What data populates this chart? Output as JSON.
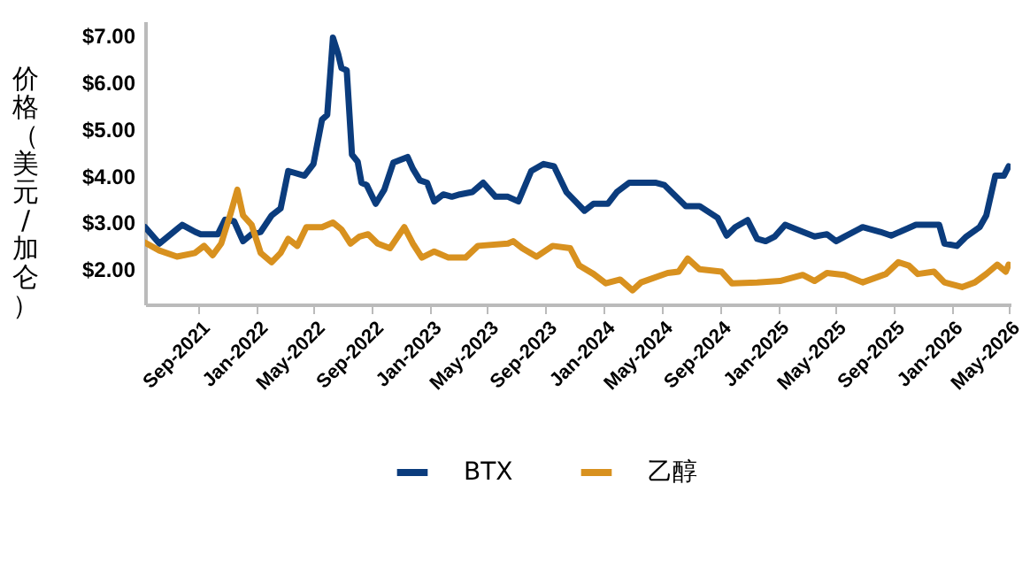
{
  "chart_data": {
    "type": "line",
    "ylabel": "价格（美元/加仑）",
    "series": [
      {
        "name": "BTX",
        "color": "#0b3c7d",
        "x": [
          "2021-05-11",
          "2021-06-10",
          "2021-07-28",
          "2021-08-24",
          "2021-09-05",
          "2021-10-11",
          "2021-10-26",
          "2021-11-14",
          "2021-12-03",
          "2021-12-21",
          "2022-01-09",
          "2022-02-01",
          "2022-02-20",
          "2022-03-08",
          "2022-04-11",
          "2022-04-30",
          "2022-05-18",
          "2022-05-29",
          "2022-06-10",
          "2022-06-21",
          "2022-06-28",
          "2022-07-09",
          "2022-07-20",
          "2022-08-01",
          "2022-08-09",
          "2022-08-20",
          "2022-09-08",
          "2022-09-26",
          "2022-10-15",
          "2022-11-14",
          "2022-11-25",
          "2022-12-10",
          "2022-12-25",
          "2023-01-09",
          "2023-01-28",
          "2023-02-15",
          "2023-03-04",
          "2023-03-30",
          "2023-04-22",
          "2023-05-18",
          "2023-06-13",
          "2023-07-05",
          "2023-08-01",
          "2023-08-27",
          "2023-09-18",
          "2023-10-14",
          "2023-11-02",
          "2023-11-21",
          "2023-12-10",
          "2024-01-09",
          "2024-01-28",
          "2024-02-23",
          "2024-04-18",
          "2024-05-07",
          "2024-06-21",
          "2024-07-20",
          "2024-08-27",
          "2024-09-15",
          "2024-10-03",
          "2024-10-29",
          "2024-11-18",
          "2024-12-06",
          "2024-12-25",
          "2025-01-16",
          "2025-02-22",
          "2025-03-19",
          "2025-04-14",
          "2025-05-03",
          "2025-05-21",
          "2025-06-28",
          "2025-08-04",
          "2025-08-27",
          "2025-10-18",
          "2025-12-06",
          "2025-12-17",
          "2026-01-12",
          "2026-02-01",
          "2026-03-01",
          "2026-03-15",
          "2026-04-03",
          "2026-04-21",
          "2026-05-01"
        ],
        "values": [
          2.9,
          2.55,
          2.95,
          2.8,
          2.75,
          2.75,
          3.06,
          3.03,
          2.6,
          2.75,
          2.8,
          3.15,
          3.3,
          4.1,
          4.0,
          4.25,
          5.2,
          5.3,
          6.95,
          6.6,
          6.3,
          6.25,
          4.45,
          4.3,
          3.85,
          3.8,
          3.4,
          3.7,
          4.28,
          4.4,
          4.15,
          3.9,
          3.85,
          3.45,
          3.6,
          3.55,
          3.6,
          3.65,
          3.85,
          3.55,
          3.55,
          3.45,
          4.1,
          4.25,
          4.2,
          3.65,
          3.45,
          3.25,
          3.4,
          3.4,
          3.65,
          3.85,
          3.85,
          3.8,
          3.35,
          3.35,
          3.1,
          2.72,
          2.9,
          3.05,
          2.65,
          2.6,
          2.7,
          2.95,
          2.8,
          2.7,
          2.75,
          2.6,
          2.7,
          2.9,
          2.8,
          2.72,
          2.95,
          2.95,
          2.55,
          2.5,
          2.7,
          2.9,
          3.15,
          4.0,
          4.0,
          4.2
        ]
      },
      {
        "name": "乙醇",
        "color": "#d8911f",
        "x": [
          "2021-05-11",
          "2021-06-10",
          "2021-07-17",
          "2021-08-24",
          "2021-09-12",
          "2021-09-30",
          "2021-10-18",
          "2021-11-07",
          "2021-11-21",
          "2021-12-03",
          "2021-12-21",
          "2022-01-09",
          "2022-02-01",
          "2022-02-20",
          "2022-03-08",
          "2022-03-27",
          "2022-04-15",
          "2022-05-18",
          "2022-06-10",
          "2022-06-28",
          "2022-07-17",
          "2022-08-05",
          "2022-08-23",
          "2022-09-12",
          "2022-10-08",
          "2022-11-07",
          "2022-11-25",
          "2022-12-14",
          "2023-01-09",
          "2023-02-08",
          "2023-03-16",
          "2023-04-11",
          "2023-06-13",
          "2023-06-24",
          "2023-07-13",
          "2023-08-12",
          "2023-09-15",
          "2023-10-22",
          "2023-11-10",
          "2023-12-10",
          "2024-01-05",
          "2024-02-04",
          "2024-03-01",
          "2024-03-19",
          "2024-05-14",
          "2024-06-06",
          "2024-06-25",
          "2024-07-20",
          "2024-09-04",
          "2024-09-26",
          "2024-11-18",
          "2025-01-05",
          "2025-02-22",
          "2025-03-19",
          "2025-04-14",
          "2025-05-21",
          "2025-06-28",
          "2025-08-16",
          "2025-09-11",
          "2025-10-03",
          "2025-10-22",
          "2025-11-25",
          "2025-12-17",
          "2026-01-23",
          "2026-02-19",
          "2026-03-15",
          "2026-04-07",
          "2026-04-25",
          "2026-05-01"
        ],
        "values": [
          2.57,
          2.4,
          2.27,
          2.35,
          2.5,
          2.3,
          2.55,
          3.2,
          3.7,
          3.15,
          2.95,
          2.35,
          2.15,
          2.35,
          2.65,
          2.5,
          2.9,
          2.9,
          3.0,
          2.85,
          2.55,
          2.7,
          2.75,
          2.55,
          2.45,
          2.9,
          2.55,
          2.25,
          2.38,
          2.25,
          2.25,
          2.5,
          2.55,
          2.6,
          2.45,
          2.27,
          2.5,
          2.45,
          2.08,
          1.9,
          1.7,
          1.78,
          1.55,
          1.72,
          1.92,
          1.95,
          2.23,
          2.0,
          1.95,
          1.7,
          1.72,
          1.75,
          1.88,
          1.75,
          1.92,
          1.88,
          1.72,
          1.9,
          2.15,
          2.08,
          1.9,
          1.95,
          1.72,
          1.62,
          1.72,
          1.9,
          2.1,
          1.95,
          2.1
        ]
      }
    ],
    "xlim": [
      "2021-05-11",
      "2026-05-05"
    ],
    "xticks": [
      {
        "value": "2021-09-01",
        "label": "Sep-2021"
      },
      {
        "value": "2022-01-01",
        "label": "Jan-2022"
      },
      {
        "value": "2022-05-01",
        "label": "May-2022"
      },
      {
        "value": "2022-09-01",
        "label": "Sep-2022"
      },
      {
        "value": "2023-01-01",
        "label": "Jan-2023"
      },
      {
        "value": "2023-05-01",
        "label": "May-2023"
      },
      {
        "value": "2023-09-01",
        "label": "Sep-2023"
      },
      {
        "value": "2024-01-01",
        "label": "Jan-2024"
      },
      {
        "value": "2024-05-01",
        "label": "May-2024"
      },
      {
        "value": "2024-09-01",
        "label": "Sep-2024"
      },
      {
        "value": "2025-01-01",
        "label": "Jan-2025"
      },
      {
        "value": "2025-05-01",
        "label": "May-2025"
      },
      {
        "value": "2025-09-01",
        "label": "Sep-2025"
      },
      {
        "value": "2026-01-01",
        "label": "Jan-2026"
      },
      {
        "value": "2026-05-01",
        "label": "May-2026"
      }
    ],
    "ylim": [
      1.25,
      7.3
    ],
    "yticks": [
      {
        "value": 2,
        "label": "$2.00"
      },
      {
        "value": 3,
        "label": "$3.00"
      },
      {
        "value": 4,
        "label": "$4.00"
      },
      {
        "value": 5,
        "label": "$5.00"
      },
      {
        "value": 6,
        "label": "$6.00"
      },
      {
        "value": 7,
        "label": "$7.00"
      }
    ],
    "grid": false,
    "legend": "bottom",
    "line_style": "solid",
    "marker": "none"
  }
}
